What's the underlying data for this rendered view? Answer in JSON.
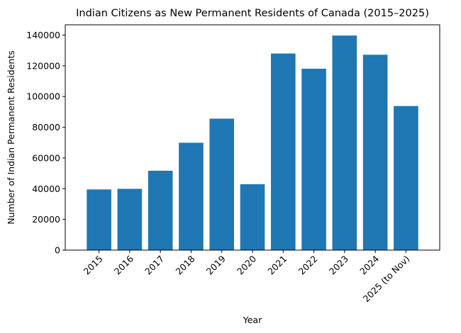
{
  "chart_data": {
    "type": "bar",
    "title": "Indian Citizens as New Permanent Residents of Canada (2015–2025)",
    "xlabel": "Year",
    "ylabel": "Number of Indian Permanent Residents",
    "categories": [
      "2015",
      "2016",
      "2017",
      "2018",
      "2019",
      "2020",
      "2021",
      "2022",
      "2023",
      "2024",
      "2025 (to Nov)"
    ],
    "values": [
      39500,
      39900,
      51700,
      69900,
      85600,
      42900,
      128000,
      118100,
      139700,
      127200,
      93800
    ],
    "ylim": [
      0,
      146700
    ],
    "yticks": [
      0,
      20000,
      40000,
      60000,
      80000,
      100000,
      120000,
      140000
    ],
    "ytick_labels": [
      "0",
      "20000",
      "40000",
      "60000",
      "80000",
      "100000",
      "120000",
      "140000"
    ],
    "bar_color": "#1f77b4",
    "grid": false,
    "legend": "none"
  }
}
